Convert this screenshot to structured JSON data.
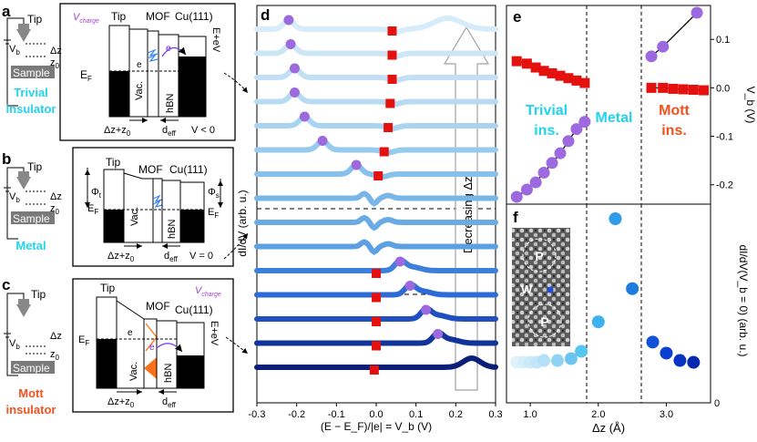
{
  "panels": {
    "a": "a",
    "b": "b",
    "c": "c",
    "d": "d",
    "e": "e",
    "f": "f"
  },
  "schematic": {
    "tip": "Tip",
    "sample": "Sample",
    "vb": "V",
    "vb_sub": "b",
    "dz": "Δz",
    "z0": "z",
    "z0_sub": "0"
  },
  "phases": {
    "trivial_line1": "Trivial",
    "trivial_line2": "insulator",
    "metal": "Metal",
    "mott_line1": "Mott",
    "mott_line2": "insulator"
  },
  "energy": {
    "tip": "Tip",
    "mof": "MOF",
    "cu": "Cu(111)",
    "vac": "Vac.",
    "hbn": "hBN",
    "ef": "E",
    "ef_sub": "F",
    "ef_evb": "E",
    "ef_evb_rest": "+eV",
    "vcharge": "V",
    "vcharge_sub": "charge",
    "electron": "e",
    "dz_z0": "Δz+z",
    "deff": "d",
    "deff_sub": "eff",
    "phi_t": "Φ",
    "phi_t_sub": "t",
    "phi_s": "Φ",
    "phi_s_sub": "s",
    "vb_lt": "V",
    "vb_lt_rest": " < 0",
    "vb_eq_rest": " = 0"
  },
  "panel_d": {
    "ylabel": "dI/dV (arb. u.)",
    "xlabel": "(E − E_F)/|e| = V_b (V)",
    "arrow_label": "Decreasing Δz",
    "xticks": [
      "-0.3",
      "-0.2",
      "-0.1",
      "0.0",
      "0.1",
      "0.2",
      "0.3"
    ]
  },
  "panel_e": {
    "label_trivial_1": "Trivial",
    "label_trivial_2": "ins.",
    "label_metal": "Metal",
    "label_mott_1": "Mott",
    "label_mott_2": "ins.",
    "ylabel": "V_b (V)",
    "yticks": [
      "0.1",
      "0.0",
      "-0.1",
      "-0.2"
    ]
  },
  "panel_f": {
    "ylabel": "dI/dV(V_b = 0) (arb. u.)",
    "xlabel": "Δz (Å)",
    "xticks": [
      "1.0",
      "2.0",
      "3.0"
    ],
    "yticks": [
      "0"
    ],
    "inset_p": "P",
    "inset_w": "W"
  },
  "colors": {
    "purple": "#9c6ade",
    "red": "#e4110e",
    "cyan": "#22d3ee",
    "orange": "#f4511e",
    "violet_charge": "#a63fd8",
    "sky": "#60b4ee"
  },
  "chart_data": [
    {
      "type": "line",
      "title": "d",
      "xlabel": "(E − E_F)/|e| = V_b (V)",
      "ylabel": "dI/dV (arb. u.)",
      "xlim": [
        -0.3,
        0.3
      ],
      "series": [
        {
          "name": "curve 1",
          "peak_purple_V": -0.22,
          "peak_red_V": 0.04,
          "color": "#d6ecf8"
        },
        {
          "name": "curve 2",
          "peak_purple_V": -0.215,
          "peak_red_V": 0.04,
          "color": "#cce6f6"
        },
        {
          "name": "curve 3",
          "peak_purple_V": -0.205,
          "peak_red_V": 0.04,
          "color": "#c2e0f4"
        },
        {
          "name": "curve 4",
          "peak_purple_V": -0.205,
          "peak_red_V": 0.035,
          "color": "#b6dbf3"
        },
        {
          "name": "curve 5",
          "peak_purple_V": -0.18,
          "peak_red_V": 0.03,
          "color": "#a8d4f1"
        },
        {
          "name": "curve 6",
          "peak_purple_V": -0.135,
          "peak_red_V": 0.02,
          "color": "#97cbee"
        },
        {
          "name": "curve 7",
          "peak_purple_V": -0.05,
          "peak_red_V": 0.005,
          "color": "#87c1eb"
        },
        {
          "name": "curve 8",
          "metal": true,
          "color": "#78b6e8"
        },
        {
          "name": "curve 9",
          "metal": true,
          "color": "#6aabe5"
        },
        {
          "name": "curve 10",
          "metal": true,
          "color": "#5c9fe2"
        },
        {
          "name": "curve 11",
          "peak_purple_V": 0.06,
          "peak_red_V": 0.0,
          "color": "#3e7fdc"
        },
        {
          "name": "curve 12",
          "peak_purple_V": 0.085,
          "peak_red_V": 0.0,
          "color": "#2f6bd6"
        },
        {
          "name": "curve 13",
          "peak_purple_V": 0.125,
          "peak_red_V": 0.0,
          "color": "#1e50c0"
        },
        {
          "name": "curve 14",
          "peak_purple_V": 0.155,
          "peak_red_V": 0.0,
          "color": "#12349a"
        },
        {
          "name": "curve 15",
          "peak_red_V": -0.005,
          "color": "#0b1f78"
        }
      ]
    },
    {
      "type": "scatter",
      "title": "e",
      "xlabel": "Δz (Å)",
      "ylabel": "V_b (V)",
      "xlim": [
        0.65,
        3.65
      ],
      "ylim": [
        -0.24,
        0.17
      ],
      "series": [
        {
          "name": "trivial purple",
          "x": [
            0.8,
            0.95,
            1.08,
            1.2,
            1.32,
            1.44,
            1.56,
            1.68,
            1.8
          ],
          "y": [
            -0.225,
            -0.21,
            -0.195,
            -0.175,
            -0.155,
            -0.135,
            -0.11,
            -0.085,
            -0.07
          ]
        },
        {
          "name": "trivial red",
          "x": [
            0.8,
            0.95,
            1.08,
            1.2,
            1.32,
            1.44,
            1.56,
            1.68,
            1.8
          ],
          "y": [
            0.055,
            0.05,
            0.042,
            0.035,
            0.03,
            0.025,
            0.02,
            0.015,
            0.01
          ]
        },
        {
          "name": "mott purple",
          "x": [
            2.78,
            2.95,
            3.45
          ],
          "y": [
            0.065,
            0.085,
            0.155
          ]
        },
        {
          "name": "mott red",
          "x": [
            2.78,
            2.95,
            3.1,
            3.25,
            3.4,
            3.55
          ],
          "y": [
            0.0,
            0.0,
            -0.002,
            -0.003,
            -0.004,
            -0.005
          ]
        }
      ],
      "boundaries_x": [
        1.85,
        2.66
      ]
    },
    {
      "type": "scatter",
      "title": "f",
      "xlabel": "Δz (Å)",
      "ylabel": "dI/dV(V_b = 0) (arb. u.)",
      "xlim": [
        0.65,
        3.65
      ],
      "series": [
        {
          "name": "zero-bias dI/dV",
          "x": [
            0.8,
            0.9,
            1.0,
            1.1,
            1.2,
            1.4,
            1.6,
            1.75,
            2.0,
            2.25,
            2.5,
            2.8,
            3.0,
            3.2,
            3.4
          ],
          "y": [
            0.22,
            0.22,
            0.22,
            0.22,
            0.23,
            0.23,
            0.24,
            0.28,
            0.44,
            1.0,
            0.62,
            0.33,
            0.27,
            0.23,
            0.22
          ]
        }
      ]
    }
  ]
}
